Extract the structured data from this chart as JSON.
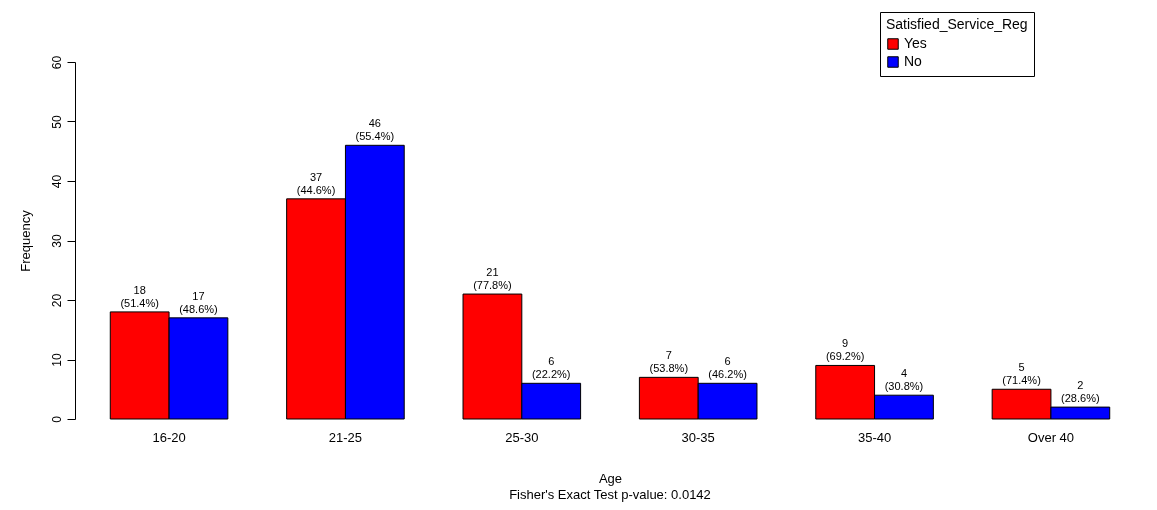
{
  "chart_data": {
    "type": "bar",
    "xlabel": "Age",
    "ylabel": "Frequency",
    "legend_title": "Satisfied_Service_Reg",
    "legend": "top right",
    "grid": false,
    "categories": [
      "16-20",
      "21-25",
      "25-30",
      "30-35",
      "35-40",
      "Over 40"
    ],
    "series": [
      {
        "name": "Yes",
        "color": "#ff0000",
        "values": [
          18,
          37,
          21,
          7,
          9,
          5
        ],
        "value_labels": [
          "18\n(51.4%)",
          "37\n(44.6%)",
          "21\n(77.8%)",
          "7\n(53.8%)",
          "9\n(69.2%)",
          "5\n(71.4%)"
        ]
      },
      {
        "name": "No",
        "color": "#0000ff",
        "values": [
          17,
          46,
          6,
          6,
          4,
          2
        ],
        "value_labels": [
          "17\n(48.6%)",
          "46\n(55.4%)",
          "6\n(22.2%)",
          "6\n(46.2%)",
          "4\n(30.8%)",
          "2\n(28.6%)"
        ]
      }
    ],
    "ylim": [
      0,
      60
    ],
    "yticks": [
      0,
      10,
      20,
      30,
      40,
      50,
      60
    ],
    "annotations": [
      "Fisher's Exact Test p-value: 0.0142"
    ]
  }
}
